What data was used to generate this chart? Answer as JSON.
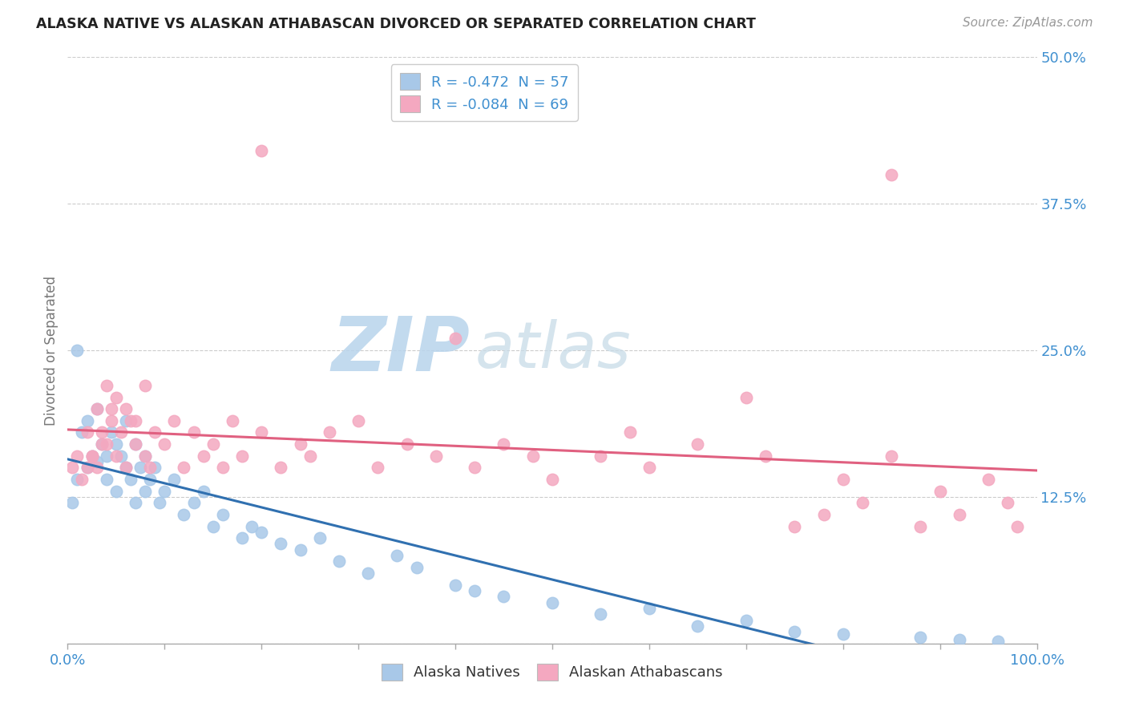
{
  "title": "ALASKA NATIVE VS ALASKAN ATHABASCAN DIVORCED OR SEPARATED CORRELATION CHART",
  "source": "Source: ZipAtlas.com",
  "ylabel": "Divorced or Separated",
  "legend_label1": "Alaska Natives",
  "legend_label2": "Alaskan Athabascans",
  "r1_text": "-0.472",
  "n1_text": "57",
  "r2_text": "-0.084",
  "n2_text": "69",
  "r1": -0.472,
  "n1": 57,
  "r2": -0.084,
  "n2": 69,
  "blue_color": "#a8c8e8",
  "pink_color": "#f4a8c0",
  "blue_line_color": "#3070b0",
  "pink_line_color": "#e06080",
  "text_color": "#4090d0",
  "watermark_color": "#ddeef8",
  "background_color": "#ffffff",
  "grid_color": "#cccccc",
  "blue_x": [
    1.0,
    1.5,
    2.0,
    2.0,
    2.5,
    3.0,
    3.0,
    3.5,
    4.0,
    4.0,
    4.5,
    5.0,
    5.0,
    5.5,
    6.0,
    6.0,
    6.5,
    7.0,
    7.0,
    7.5,
    8.0,
    8.0,
    8.5,
    9.0,
    9.5,
    10.0,
    11.0,
    12.0,
    13.0,
    14.0,
    15.0,
    16.0,
    18.0,
    19.0,
    20.0,
    22.0,
    24.0,
    26.0,
    28.0,
    31.0,
    34.0,
    36.0,
    40.0,
    42.0,
    45.0,
    50.0,
    55.0,
    60.0,
    65.0,
    70.0,
    75.0,
    80.0,
    88.0,
    92.0,
    96.0,
    0.5,
    1.0
  ],
  "blue_y": [
    14.0,
    18.0,
    15.0,
    19.0,
    16.0,
    15.5,
    20.0,
    17.0,
    14.0,
    16.0,
    18.0,
    17.0,
    13.0,
    16.0,
    15.0,
    19.0,
    14.0,
    17.0,
    12.0,
    15.0,
    16.0,
    13.0,
    14.0,
    15.0,
    12.0,
    13.0,
    14.0,
    11.0,
    12.0,
    13.0,
    10.0,
    11.0,
    9.0,
    10.0,
    9.5,
    8.5,
    8.0,
    9.0,
    7.0,
    6.0,
    7.5,
    6.5,
    5.0,
    4.5,
    4.0,
    3.5,
    2.5,
    3.0,
    1.5,
    2.0,
    1.0,
    0.8,
    0.5,
    0.3,
    0.2,
    12.0,
    25.0
  ],
  "pink_x": [
    0.5,
    1.0,
    1.5,
    2.0,
    2.0,
    2.5,
    3.0,
    3.0,
    3.5,
    4.0,
    4.0,
    4.5,
    5.0,
    5.0,
    5.5,
    6.0,
    6.0,
    7.0,
    7.0,
    8.0,
    8.0,
    9.0,
    10.0,
    11.0,
    12.0,
    13.0,
    14.0,
    15.0,
    16.0,
    17.0,
    18.0,
    20.0,
    22.0,
    24.0,
    25.0,
    27.0,
    30.0,
    32.0,
    35.0,
    38.0,
    40.0,
    42.0,
    45.0,
    48.0,
    50.0,
    55.0,
    58.0,
    60.0,
    65.0,
    70.0,
    72.0,
    75.0,
    78.0,
    80.0,
    82.0,
    85.0,
    88.0,
    90.0,
    92.0,
    95.0,
    97.0,
    98.0,
    20.0,
    85.0,
    2.5,
    3.5,
    4.5,
    6.5,
    8.5
  ],
  "pink_y": [
    15.0,
    16.0,
    14.0,
    15.0,
    18.0,
    16.0,
    15.0,
    20.0,
    18.0,
    17.0,
    22.0,
    19.0,
    16.0,
    21.0,
    18.0,
    15.0,
    20.0,
    17.0,
    19.0,
    16.0,
    22.0,
    18.0,
    17.0,
    19.0,
    15.0,
    18.0,
    16.0,
    17.0,
    15.0,
    19.0,
    16.0,
    18.0,
    15.0,
    17.0,
    16.0,
    18.0,
    19.0,
    15.0,
    17.0,
    16.0,
    26.0,
    15.0,
    17.0,
    16.0,
    14.0,
    16.0,
    18.0,
    15.0,
    17.0,
    21.0,
    16.0,
    10.0,
    11.0,
    14.0,
    12.0,
    16.0,
    10.0,
    13.0,
    11.0,
    14.0,
    12.0,
    10.0,
    42.0,
    40.0,
    16.0,
    17.0,
    20.0,
    19.0,
    15.0
  ]
}
